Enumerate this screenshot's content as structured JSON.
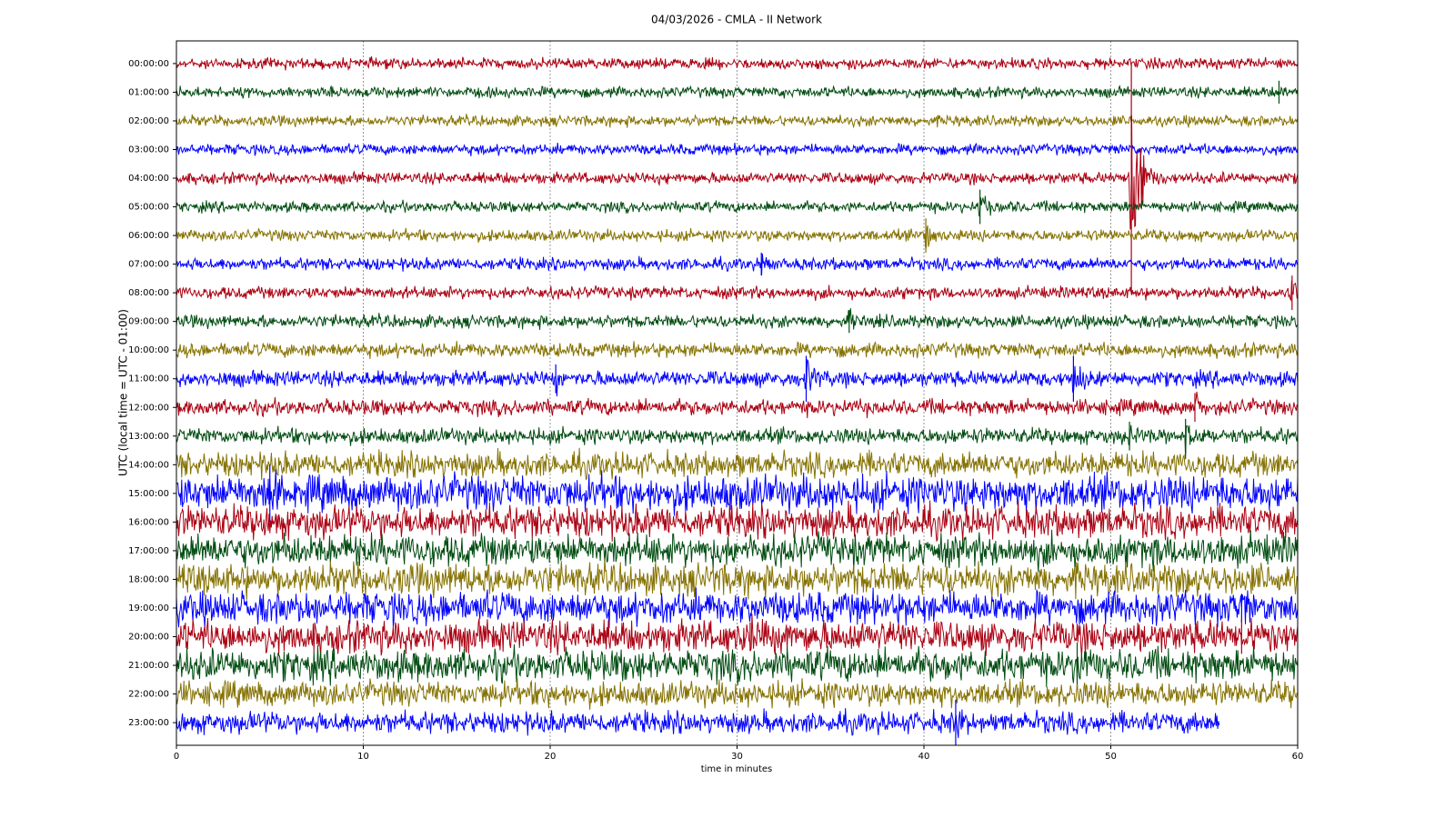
{
  "chart_data": {
    "type": "helicorder",
    "title": "04/03/2026 - CMLA - II Network",
    "xlabel": "time in minutes",
    "ylabel": "UTC (local time = UTC - 01:00)",
    "xlim": [
      0,
      60
    ],
    "xticks": [
      0,
      10,
      20,
      30,
      40,
      50,
      60
    ],
    "grid": true,
    "series": [
      {
        "name": "00:00:00",
        "color": "#aa0012",
        "amplitude": 0.15,
        "end": 60,
        "events": []
      },
      {
        "name": "01:00:00",
        "color": "#004c10",
        "amplitude": 0.15,
        "end": 60,
        "events": [
          [
            59,
            0.4
          ]
        ]
      },
      {
        "name": "02:00:00",
        "color": "#857200",
        "amplitude": 0.15,
        "end": 60,
        "events": []
      },
      {
        "name": "03:00:00",
        "color": "#0000ff",
        "amplitude": 0.15,
        "end": 60,
        "events": []
      },
      {
        "name": "04:00:00",
        "color": "#aa0012",
        "amplitude": 0.16,
        "end": 60,
        "events": [
          [
            51.1,
            4
          ]
        ]
      },
      {
        "name": "05:00:00",
        "color": "#004c10",
        "amplitude": 0.15,
        "end": 60,
        "events": [
          [
            43,
            0.6
          ]
        ]
      },
      {
        "name": "06:00:00",
        "color": "#857200",
        "amplitude": 0.16,
        "end": 60,
        "events": [
          [
            40.1,
            0.6
          ]
        ]
      },
      {
        "name": "07:00:00",
        "color": "#0000ff",
        "amplitude": 0.17,
        "end": 60,
        "events": [
          [
            31.3,
            0.4
          ]
        ]
      },
      {
        "name": "08:00:00",
        "color": "#aa0012",
        "amplitude": 0.17,
        "end": 60,
        "events": [
          [
            59.7,
            0.6
          ]
        ]
      },
      {
        "name": "09:00:00",
        "color": "#004c10",
        "amplitude": 0.18,
        "end": 60,
        "events": [
          [
            36,
            0.4
          ]
        ]
      },
      {
        "name": "10:00:00",
        "color": "#857200",
        "amplitude": 0.2,
        "end": 60,
        "events": []
      },
      {
        "name": "11:00:00",
        "color": "#0000ff",
        "amplitude": 0.22,
        "end": 60,
        "events": [
          [
            20.3,
            0.5
          ],
          [
            33.7,
            0.8
          ],
          [
            48,
            0.8
          ]
        ]
      },
      {
        "name": "12:00:00",
        "color": "#aa0012",
        "amplitude": 0.22,
        "end": 60,
        "events": [
          [
            54.5,
            0.5
          ]
        ]
      },
      {
        "name": "13:00:00",
        "color": "#004c10",
        "amplitude": 0.22,
        "end": 60,
        "events": [
          [
            51,
            0.5
          ],
          [
            54,
            0.6
          ]
        ]
      },
      {
        "name": "14:00:00",
        "color": "#857200",
        "amplitude": 0.35,
        "end": 60,
        "events": []
      },
      {
        "name": "15:00:00",
        "color": "#0000ff",
        "amplitude": 0.5,
        "end": 60,
        "events": [
          [
            5,
            1
          ]
        ]
      },
      {
        "name": "16:00:00",
        "color": "#aa0012",
        "amplitude": 0.45,
        "end": 60,
        "events": []
      },
      {
        "name": "17:00:00",
        "color": "#004c10",
        "amplitude": 0.45,
        "end": 60,
        "events": []
      },
      {
        "name": "18:00:00",
        "color": "#857200",
        "amplitude": 0.45,
        "end": 60,
        "events": []
      },
      {
        "name": "19:00:00",
        "color": "#0000ff",
        "amplitude": 0.45,
        "end": 60,
        "events": [
          [
            57,
            0.5
          ]
        ]
      },
      {
        "name": "20:00:00",
        "color": "#aa0012",
        "amplitude": 0.45,
        "end": 60,
        "events": [
          [
            30.7,
            0.5
          ],
          [
            57,
            0.6
          ]
        ]
      },
      {
        "name": "21:00:00",
        "color": "#004c10",
        "amplitude": 0.45,
        "end": 60,
        "events": [
          [
            48.2,
            0.8
          ]
        ]
      },
      {
        "name": "22:00:00",
        "color": "#857200",
        "amplitude": 0.35,
        "end": 60,
        "events": []
      },
      {
        "name": "23:00:00",
        "color": "#0000ff",
        "amplitude": 0.3,
        "end": 55.8,
        "events": [
          [
            41.7,
            0.8
          ]
        ]
      }
    ]
  }
}
